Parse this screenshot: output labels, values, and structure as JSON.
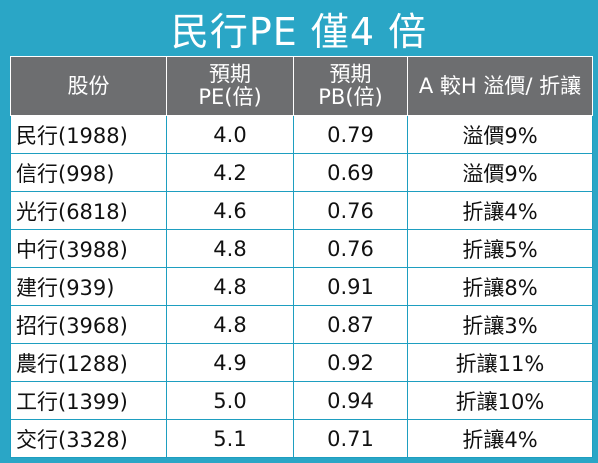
{
  "title": "民行PE 僅4 倍",
  "chart_data": {
    "type": "table",
    "title": "民行PE 僅4 倍",
    "headers": [
      "股份",
      "預期\nPE(倍)",
      "預期\nPB(倍)",
      "A 較H 溢價/ 折讓"
    ],
    "header_lines": [
      [
        "股份"
      ],
      [
        "預期",
        "PE(倍)"
      ],
      [
        "預期",
        "PB(倍)"
      ],
      [
        "A 較H 溢價/ 折讓"
      ]
    ],
    "rows": [
      [
        "民行(1988)",
        "4.0",
        "0.79",
        "溢價9%"
      ],
      [
        "信行(998)",
        "4.2",
        "0.69",
        "溢價9%"
      ],
      [
        "光行(6818)",
        "4.6",
        "0.76",
        "折讓4%"
      ],
      [
        "中行(3988)",
        "4.8",
        "0.76",
        "折讓5%"
      ],
      [
        "建行(939)",
        "4.8",
        "0.91",
        "折讓8%"
      ],
      [
        "招行(3968)",
        "4.8",
        "0.87",
        "折讓3%"
      ],
      [
        "農行(1288)",
        "4.9",
        "0.92",
        "折讓11%"
      ],
      [
        "工行(1399)",
        "5.0",
        "0.94",
        "折讓10%"
      ],
      [
        "交行(3328)",
        "5.1",
        "0.71",
        "折讓4%"
      ]
    ]
  },
  "colors": {
    "frame": "#2aa6c6",
    "header_bg": "#6d6e70",
    "header_text": "#ffffff",
    "grid": "#1e9ec0"
  }
}
